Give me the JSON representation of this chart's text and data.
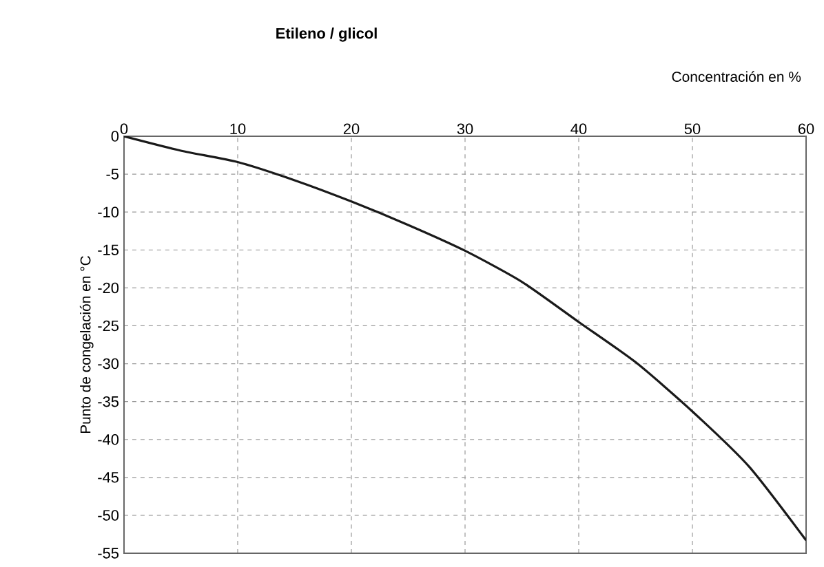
{
  "chart_data": {
    "type": "line",
    "title": "Etileno / glicol",
    "xlabel": "Concentración en %",
    "ylabel": "Punto de congelación en °C",
    "x": [
      0,
      5,
      10,
      15,
      20,
      25,
      30,
      35,
      40,
      45,
      50,
      55,
      60
    ],
    "values": [
      0,
      -1.9,
      -3.4,
      -5.8,
      -8.6,
      -11.7,
      -15.1,
      -19.2,
      -24.5,
      -29.8,
      -36.3,
      -43.6,
      -53.3
    ],
    "color": "#1a1a1a",
    "marker": "none",
    "line_style": "solid",
    "xlim": [
      0,
      60
    ],
    "ylim": [
      -55,
      0
    ],
    "xticks": [
      0,
      10,
      20,
      30,
      40,
      50,
      60
    ],
    "yticks": [
      0,
      -5,
      -10,
      -15,
      -20,
      -25,
      -30,
      -35,
      -40,
      -45,
      -50,
      -55
    ],
    "grid": true
  }
}
